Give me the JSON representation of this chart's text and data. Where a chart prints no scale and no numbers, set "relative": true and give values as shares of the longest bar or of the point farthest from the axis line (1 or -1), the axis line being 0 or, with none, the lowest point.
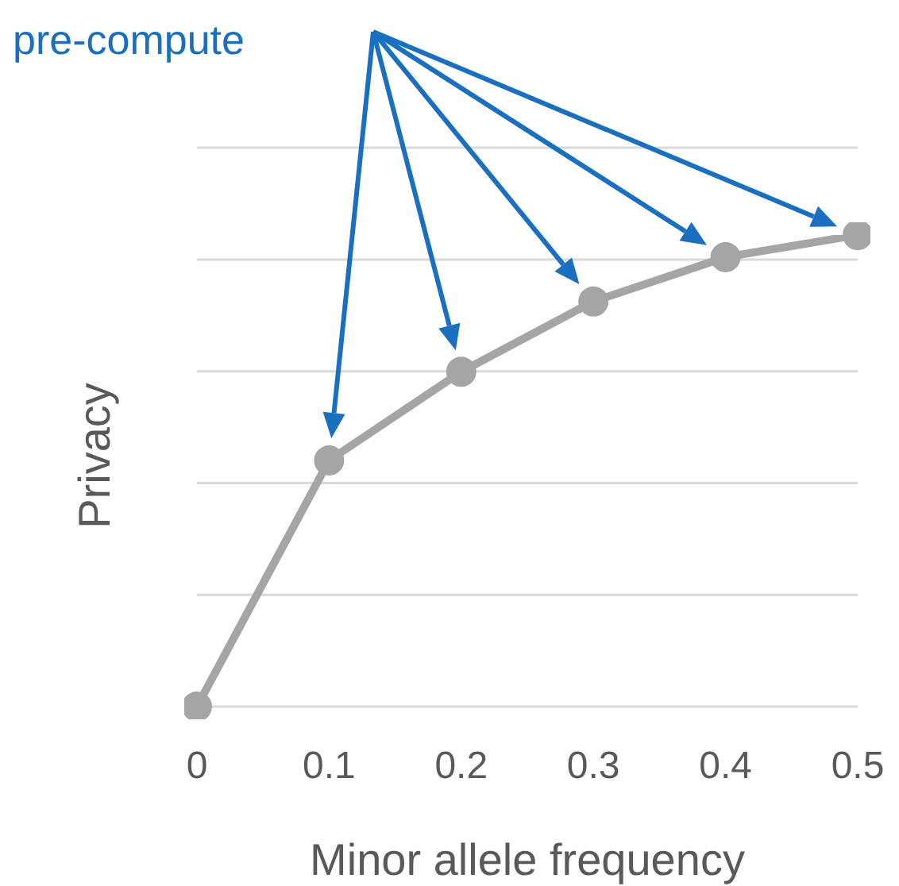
{
  "chart_data": {
    "type": "line",
    "relative": true,
    "xlabel": "Minor allele frequency",
    "ylabel": "Privacy",
    "x": [
      0,
      0.1,
      0.2,
      0.3,
      0.4,
      0.5
    ],
    "xlim": [
      0,
      0.5
    ],
    "xticks": [
      0,
      0.1,
      0.2,
      0.3,
      0.4,
      0.5
    ],
    "series": [
      {
        "color": "#a5a5a5",
        "values": [
          0,
          0.522,
          0.71,
          0.859,
          0.953,
          1
        ]
      }
    ],
    "marker": "circle",
    "line_style": "solid",
    "grid": "y",
    "annotations": [
      "pre-compute"
    ]
  }
}
